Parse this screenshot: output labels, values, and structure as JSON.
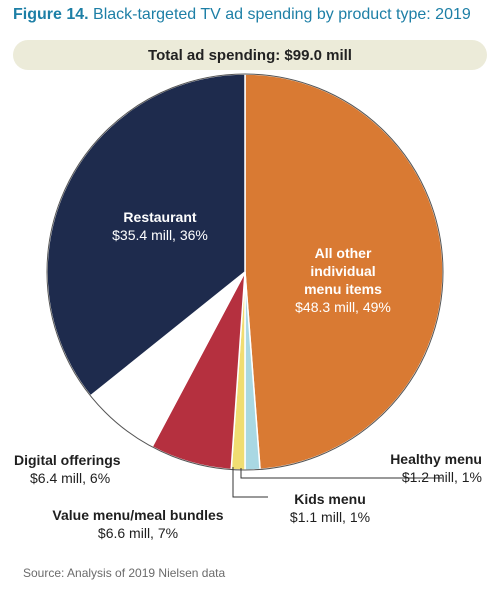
{
  "figure": {
    "number": "Figure 14.",
    "title": "Black-targeted TV ad spending by product type: 2019"
  },
  "total_banner": "Total ad spending: $99.0 mill",
  "source": "Source: Analysis of 2019 Nielsen data",
  "chart_data": {
    "type": "pie",
    "title": "Black-targeted TV ad spending by product type: 2019",
    "total": "Total ad spending: $99.0 mill",
    "slices": [
      {
        "name": "All other individual menu items",
        "value": 48.3,
        "percent": 49,
        "display": "$48.3 mill, 49%",
        "color": "#d97a33"
      },
      {
        "name": "Healthy menu",
        "value": 1.2,
        "percent": 1,
        "display": "$1.2 mill, 1%",
        "color": "#a9d8e3"
      },
      {
        "name": "Kids menu",
        "value": 1.1,
        "percent": 1,
        "display": "$1.1 mill, 1%",
        "color": "#f0dd72"
      },
      {
        "name": "Value menu/meal bundles",
        "value": 6.6,
        "percent": 7,
        "display": "$6.6 mill, 7%",
        "color": "#b5303f"
      },
      {
        "name": "Digital offerings",
        "value": 6.4,
        "percent": 6,
        "display": "$6.4 mill, 6%",
        "color": "#ffffff"
      },
      {
        "name": "Restaurant",
        "value": 35.4,
        "percent": 36,
        "display": "$35.4 mill, 36%",
        "color": "#1e2b4d"
      }
    ],
    "labels": {
      "all_other": {
        "lines": [
          "All other",
          "individual",
          "menu items"
        ],
        "value": "$48.3 mill, 49%"
      },
      "restaurant": {
        "name": "Restaurant",
        "value": "$35.4 mill, 36%"
      },
      "healthy": {
        "name": "Healthy menu",
        "value": "$1.2 mill, 1%"
      },
      "kids": {
        "name": "Kids menu",
        "value": "$1.1 mill, 1%"
      },
      "value_menu": {
        "name": "Value menu/meal bundles",
        "value": "$6.6 mill, 7%"
      },
      "digital": {
        "name": "Digital offerings",
        "value": "$6.4 mill, 6%"
      }
    }
  }
}
